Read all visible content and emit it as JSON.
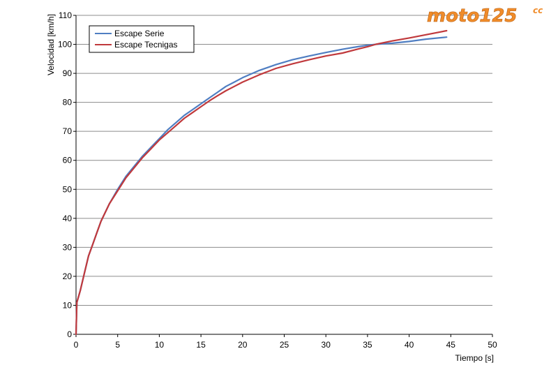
{
  "logo": {
    "text": "moto125",
    "suffix": "cc"
  },
  "chart_data": {
    "type": "line",
    "xlabel": "Tiempo [s]",
    "ylabel": "Velocidad [km/h]",
    "xlim": [
      0,
      50
    ],
    "ylim": [
      0,
      110
    ],
    "xticks": [
      0,
      5,
      10,
      15,
      20,
      25,
      30,
      35,
      40,
      45,
      50
    ],
    "yticks": [
      0,
      10,
      20,
      30,
      40,
      50,
      60,
      70,
      80,
      90,
      100,
      110
    ],
    "grid": "horizontal",
    "legend_position": "top-left",
    "series": [
      {
        "name": "Escape Serie",
        "color": "#4f7ec2",
        "x": [
          0,
          0.1,
          0.5,
          1,
          1.5,
          2,
          2.5,
          3,
          3.5,
          4,
          5,
          6,
          7,
          8,
          9,
          10,
          11,
          12,
          13,
          14,
          15,
          16,
          17,
          18,
          19,
          20,
          22,
          24,
          26,
          28,
          30,
          32,
          34,
          35,
          36,
          38,
          40,
          42,
          44.5
        ],
        "y": [
          0,
          11,
          15,
          21,
          27,
          31,
          35,
          39,
          42,
          45,
          50,
          54.5,
          58,
          61.5,
          64.5,
          67.5,
          70.5,
          73,
          75.5,
          77.5,
          79.5,
          81.5,
          83.5,
          85.5,
          87,
          88.5,
          91,
          93,
          94.7,
          96,
          97.2,
          98.3,
          99.3,
          99.7,
          100,
          100.4,
          101,
          101.8,
          102.5
        ]
      },
      {
        "name": "Escape Tecnigas",
        "color": "#c0393c",
        "x": [
          0,
          0.1,
          0.5,
          1,
          1.5,
          2,
          2.5,
          3,
          3.5,
          4,
          5,
          6,
          7,
          8,
          9,
          10,
          11,
          12,
          13,
          14,
          15,
          16,
          17,
          18,
          19,
          20,
          22,
          24,
          26,
          28,
          30,
          32,
          34,
          35,
          36,
          38,
          40,
          42,
          44.5
        ],
        "y": [
          0,
          11,
          15,
          21,
          27,
          31,
          35,
          39,
          42,
          45,
          49.5,
          54,
          57.5,
          61,
          64,
          67,
          69.5,
          72,
          74.5,
          76.5,
          78.5,
          80.5,
          82.3,
          84,
          85.5,
          87,
          89.5,
          91.7,
          93.3,
          94.7,
          96,
          97,
          98.5,
          99.2,
          100,
          101.2,
          102.2,
          103.3,
          104.7
        ]
      }
    ]
  }
}
